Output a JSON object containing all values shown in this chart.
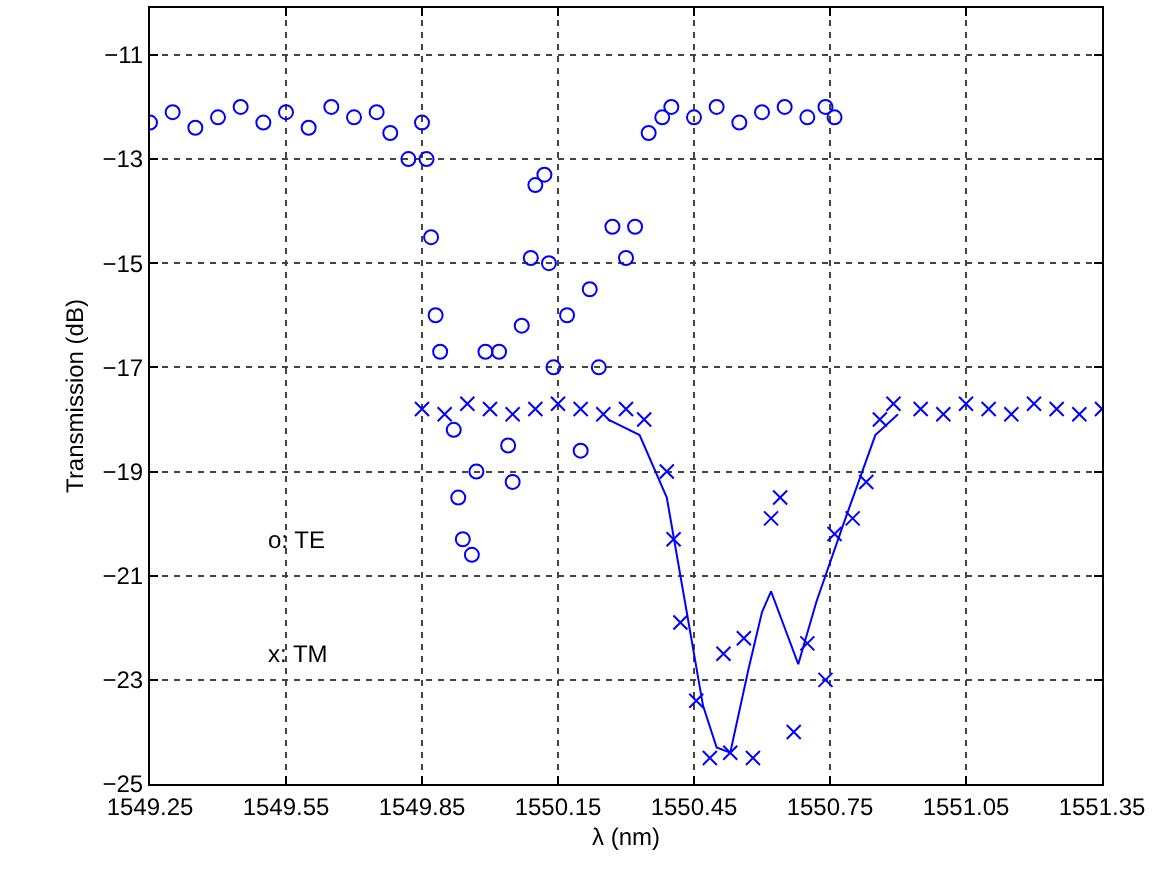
{
  "chart_data": {
    "type": "scatter",
    "xlabel": "λ (nm)",
    "ylabel": "Transmission (dB)",
    "xlim": [
      1549.25,
      1551.35
    ],
    "xticks": [
      1549.25,
      1549.55,
      1549.85,
      1550.15,
      1550.45,
      1550.75,
      1551.05,
      1551.35
    ],
    "ylim": [
      -25,
      -10.1
    ],
    "yticks": [
      -25,
      -23,
      -21,
      -19,
      -17,
      -15,
      -13,
      -11
    ],
    "grid": true,
    "annotations": [
      "o: TE",
      "x: TM"
    ],
    "series": [
      {
        "marker": "circle",
        "color": "#0000ff",
        "x": [
          1549.25,
          1549.3,
          1549.35,
          1549.4,
          1549.45,
          1549.5,
          1549.55,
          1549.6,
          1549.65,
          1549.7,
          1549.75,
          1549.78,
          1549.82,
          1549.85,
          1549.86,
          1549.87,
          1549.88,
          1549.89,
          1549.92,
          1549.93,
          1549.94,
          1549.96,
          1549.97,
          1549.99,
          1550.02,
          1550.04,
          1550.05,
          1550.07,
          1550.09,
          1550.1,
          1550.12,
          1550.13,
          1550.14,
          1550.17,
          1550.2,
          1550.22,
          1550.24,
          1550.27,
          1550.3,
          1550.32,
          1550.35,
          1550.38,
          1550.4,
          1550.45,
          1550.5,
          1550.55,
          1550.6,
          1550.65,
          1550.7,
          1550.74,
          1550.76
        ],
        "values": [
          -12.3,
          -12.1,
          -12.4,
          -12.2,
          -12.0,
          -12.3,
          -12.1,
          -12.4,
          -12.0,
          -12.2,
          -12.1,
          -12.5,
          -13.0,
          -12.3,
          -13.0,
          -14.5,
          -16.0,
          -16.7,
          -18.2,
          -19.5,
          -20.3,
          -20.6,
          -19.0,
          -16.7,
          -16.7,
          -18.5,
          -19.2,
          -16.2,
          -14.9,
          -13.5,
          -13.3,
          -15.0,
          -17.0,
          -16.0,
          -18.6,
          -15.5,
          -17.0,
          -14.3,
          -14.9,
          -14.3,
          -12.5,
          -12.2,
          -12.0,
          -12.2,
          -12.0,
          -12.3,
          -12.1,
          -12.0,
          -12.2,
          -12.0,
          -12.2
        ]
      },
      {
        "marker": "cross",
        "color": "#0000ff",
        "x": [
          1549.85,
          1549.9,
          1549.95,
          1550.0,
          1550.05,
          1550.1,
          1550.15,
          1550.2,
          1550.25,
          1550.3,
          1550.34,
          1550.39,
          1550.405,
          1550.42,
          1550.455,
          1550.485,
          1550.515,
          1550.53,
          1550.56,
          1550.58,
          1550.62,
          1550.64,
          1550.67,
          1550.7,
          1550.74,
          1550.76,
          1550.8,
          1550.83,
          1550.86,
          1550.89,
          1550.95,
          1551.0,
          1551.05,
          1551.1,
          1551.15,
          1551.2,
          1551.25,
          1551.3,
          1551.35
        ],
        "values": [
          -17.8,
          -17.9,
          -17.7,
          -17.8,
          -17.9,
          -17.8,
          -17.7,
          -17.8,
          -17.9,
          -17.8,
          -18.0,
          -19.0,
          -20.3,
          -21.9,
          -23.4,
          -24.5,
          -22.5,
          -24.4,
          -22.2,
          -24.5,
          -19.9,
          -19.5,
          -24.0,
          -22.3,
          -23.0,
          -20.2,
          -19.9,
          -19.2,
          -18.0,
          -17.7,
          -17.8,
          -17.9,
          -17.7,
          -17.8,
          -17.9,
          -17.7,
          -17.8,
          -17.9,
          -17.8
        ]
      },
      {
        "type": "line",
        "marker": "none",
        "line_style": "solid",
        "color": "#0000ff",
        "x": [
          1550.26,
          1550.33,
          1550.39,
          1550.43,
          1550.47,
          1550.5,
          1550.53,
          1550.57,
          1550.6,
          1550.62,
          1550.65,
          1550.68,
          1550.72,
          1550.78,
          1550.85,
          1550.9
        ],
        "values": [
          -18.0,
          -18.3,
          -19.5,
          -21.5,
          -23.5,
          -24.3,
          -24.4,
          -22.8,
          -21.7,
          -21.3,
          -22.0,
          -22.7,
          -21.5,
          -20.0,
          -18.3,
          -17.9
        ]
      }
    ]
  }
}
